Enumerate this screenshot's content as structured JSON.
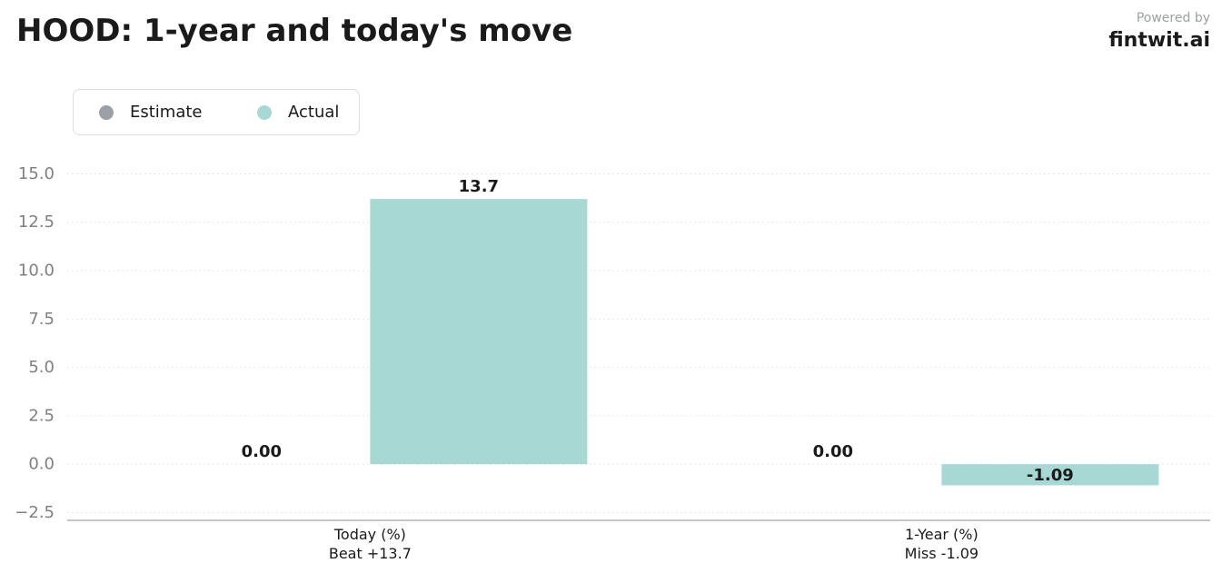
{
  "header": {
    "title": "HOOD: 1-year and today's move",
    "powered_by": "Powered by",
    "brand": "fintwit.ai"
  },
  "legend": {
    "items": [
      {
        "label": "Estimate",
        "color": "#9aa0a6"
      },
      {
        "label": "Actual",
        "color": "#a8d8d4"
      }
    ]
  },
  "chart_data": {
    "type": "bar",
    "categories": [
      "Today (%)",
      "1-Year (%)"
    ],
    "category_sublabels": [
      "Beat +13.7",
      "Miss -1.09"
    ],
    "series": [
      {
        "name": "Estimate",
        "color": "#9aa0a6",
        "values": [
          0.0,
          0.0
        ],
        "value_labels": [
          "0.00",
          "0.00"
        ]
      },
      {
        "name": "Actual",
        "color": "#a8d8d4",
        "values": [
          13.7,
          -1.09
        ],
        "value_labels": [
          "13.7",
          "-1.09"
        ]
      }
    ],
    "y_ticks": [
      -2.5,
      0.0,
      2.5,
      5.0,
      7.5,
      10.0,
      12.5,
      15.0
    ],
    "y_tick_labels": [
      "−2.5",
      "0.0",
      "2.5",
      "5.0",
      "7.5",
      "10.0",
      "12.5",
      "15.0"
    ],
    "ylim": [
      -2.9,
      16.1
    ],
    "grid": true,
    "legend_position": "top-left"
  }
}
